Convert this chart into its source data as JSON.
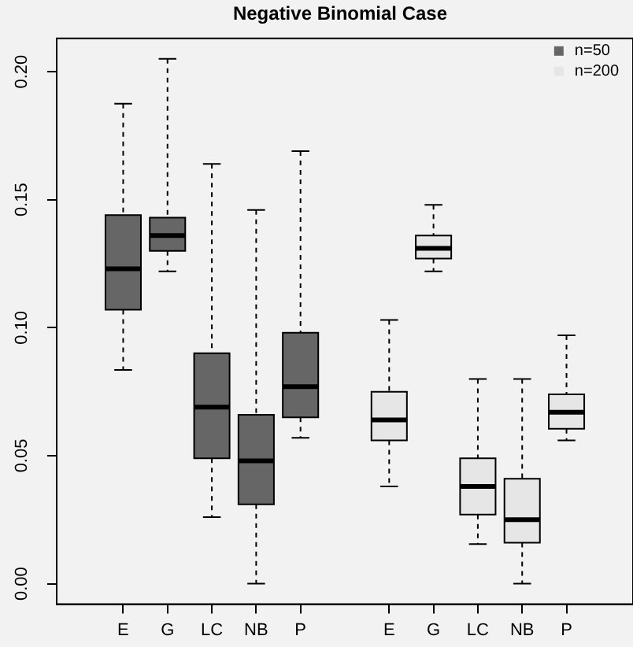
{
  "chart_data": {
    "type": "box",
    "title": "Negative Binomial Case",
    "categories": [
      null,
      "E",
      "G",
      "LC",
      "NB",
      "P",
      null,
      "E",
      "G",
      "LC",
      "NB",
      "P",
      null
    ],
    "series": [
      {
        "name": "n=50",
        "color": "#666666",
        "boxes": [
          null,
          {
            "low": 0.0835,
            "q1": 0.107,
            "median": 0.123,
            "q3": 0.144,
            "high": 0.1875
          },
          {
            "low": 0.122,
            "q1": 0.13,
            "median": 0.136,
            "q3": 0.143,
            "high": 0.205
          },
          {
            "low": 0.026,
            "q1": 0.049,
            "median": 0.069,
            "q3": 0.09,
            "high": 0.164
          },
          {
            "low": 0.0,
            "q1": 0.031,
            "median": 0.048,
            "q3": 0.066,
            "high": 0.146
          },
          {
            "low": 0.057,
            "q1": 0.065,
            "median": 0.077,
            "q3": 0.098,
            "high": 0.169
          },
          null,
          null,
          null,
          null,
          null,
          null,
          null
        ]
      },
      {
        "name": "n=200",
        "color": "#e6e6e6",
        "boxes": [
          null,
          null,
          null,
          null,
          null,
          null,
          null,
          {
            "low": 0.038,
            "q1": 0.056,
            "median": 0.064,
            "q3": 0.075,
            "high": 0.103
          },
          {
            "low": 0.122,
            "q1": 0.127,
            "median": 0.131,
            "q3": 0.136,
            "high": 0.148
          },
          {
            "low": 0.0155,
            "q1": 0.027,
            "median": 0.038,
            "q3": 0.049,
            "high": 0.08
          },
          {
            "low": 0.0,
            "q1": 0.016,
            "median": 0.025,
            "q3": 0.041,
            "high": 0.08
          },
          {
            "low": 0.056,
            "q1": 0.0605,
            "median": 0.067,
            "q3": 0.074,
            "high": 0.097
          },
          null
        ]
      }
    ],
    "ylim": [
      -0.008,
      0.213
    ],
    "yticks": [
      {
        "value": 0,
        "label": "0.00"
      },
      {
        "value": 0.05,
        "label": "0.05"
      },
      {
        "value": 0.1,
        "label": "0.10"
      },
      {
        "value": 0.15,
        "label": "0.15"
      },
      {
        "value": 0.2,
        "label": "0.20"
      }
    ],
    "legend": "top right"
  }
}
